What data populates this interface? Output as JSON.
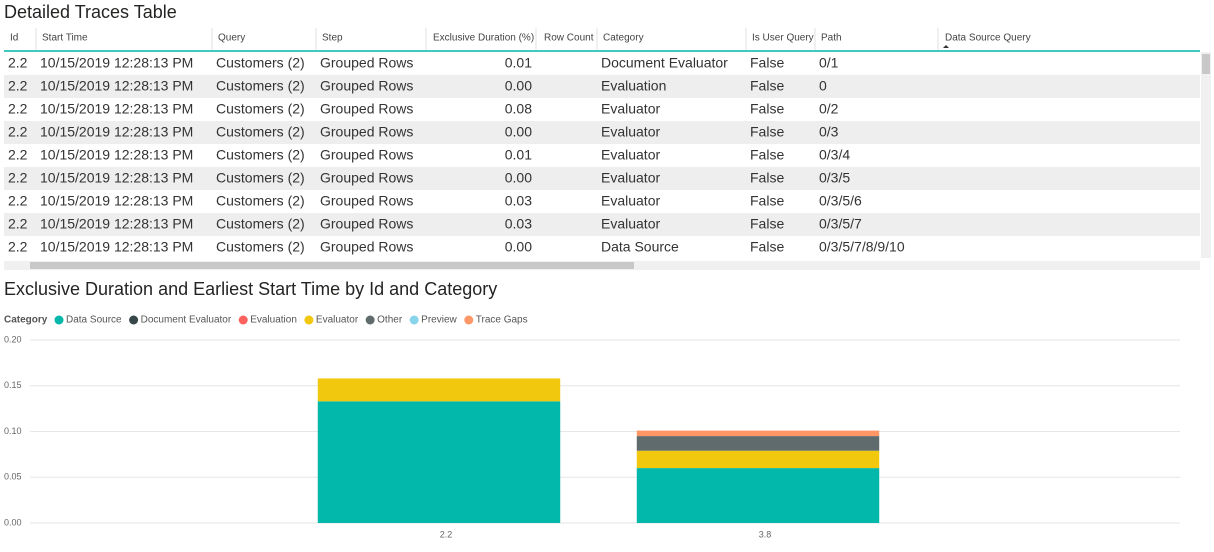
{
  "table": {
    "title": "Detailed Traces Table",
    "columns": [
      "Id",
      "Start Time",
      "Query",
      "Step",
      "Exclusive Duration (%)",
      "Row Count",
      "Category",
      "Is User Query",
      "Path",
      "Data Source Query"
    ],
    "rows": [
      [
        "2.2",
        "10/15/2019 12:28:13 PM",
        "Customers (2)",
        "Grouped Rows",
        "0.01",
        null,
        "Document Evaluator",
        "False",
        "0/1",
        null
      ],
      [
        "2.2",
        "10/15/2019 12:28:13 PM",
        "Customers (2)",
        "Grouped Rows",
        "0.00",
        null,
        "Evaluation",
        "False",
        "0",
        null
      ],
      [
        "2.2",
        "10/15/2019 12:28:13 PM",
        "Customers (2)",
        "Grouped Rows",
        "0.08",
        null,
        "Evaluator",
        "False",
        "0/2",
        null
      ],
      [
        "2.2",
        "10/15/2019 12:28:13 PM",
        "Customers (2)",
        "Grouped Rows",
        "0.00",
        null,
        "Evaluator",
        "False",
        "0/3",
        null
      ],
      [
        "2.2",
        "10/15/2019 12:28:13 PM",
        "Customers (2)",
        "Grouped Rows",
        "0.01",
        null,
        "Evaluator",
        "False",
        "0/3/4",
        null
      ],
      [
        "2.2",
        "10/15/2019 12:28:13 PM",
        "Customers (2)",
        "Grouped Rows",
        "0.00",
        null,
        "Evaluator",
        "False",
        "0/3/5",
        null
      ],
      [
        "2.2",
        "10/15/2019 12:28:13 PM",
        "Customers (2)",
        "Grouped Rows",
        "0.03",
        null,
        "Evaluator",
        "False",
        "0/3/5/6",
        null
      ],
      [
        "2.2",
        "10/15/2019 12:28:13 PM",
        "Customers (2)",
        "Grouped Rows",
        "0.03",
        null,
        "Evaluator",
        "False",
        "0/3/5/7",
        null
      ],
      [
        "2.2",
        "10/15/2019 12:28:13 PM",
        "Customers (2)",
        "Grouped Rows",
        "0.00",
        null,
        "Data Source",
        "False",
        "0/3/5/7/8/9/10",
        null
      ]
    ]
  },
  "chart_data": {
    "type": "stacked_bar",
    "title": "Exclusive Duration and Earliest Start Time by Id and Category",
    "legend_title": "Category",
    "categories": [
      "2.2",
      "3.8"
    ],
    "series": [
      {
        "name": "Data Source",
        "color": "#01b8aa",
        "values": [
          0.133,
          0.06
        ]
      },
      {
        "name": "Document Evaluator",
        "color": "#374649",
        "values": [
          0,
          0
        ]
      },
      {
        "name": "Evaluation",
        "color": "#fd625e",
        "values": [
          0,
          0
        ]
      },
      {
        "name": "Evaluator",
        "color": "#f2c80f",
        "values": [
          0.025,
          0.019
        ]
      },
      {
        "name": "Other",
        "color": "#5f6b6d",
        "values": [
          0,
          0.016
        ]
      },
      {
        "name": "Preview",
        "color": "#8ad4eb",
        "values": [
          0,
          0
        ]
      },
      {
        "name": "Trace Gaps",
        "color": "#fe9666",
        "values": [
          0,
          0.006
        ]
      }
    ],
    "ylim": [
      0,
      0.2
    ],
    "yticks": [
      {
        "value": 0,
        "label": "0.00"
      },
      {
        "value": 0.05,
        "label": "0.05"
      },
      {
        "value": 0.1,
        "label": "0.10"
      },
      {
        "value": 0.15,
        "label": "0.15"
      },
      {
        "value": 0.2,
        "label": "0.20"
      }
    ],
    "grid": true
  }
}
